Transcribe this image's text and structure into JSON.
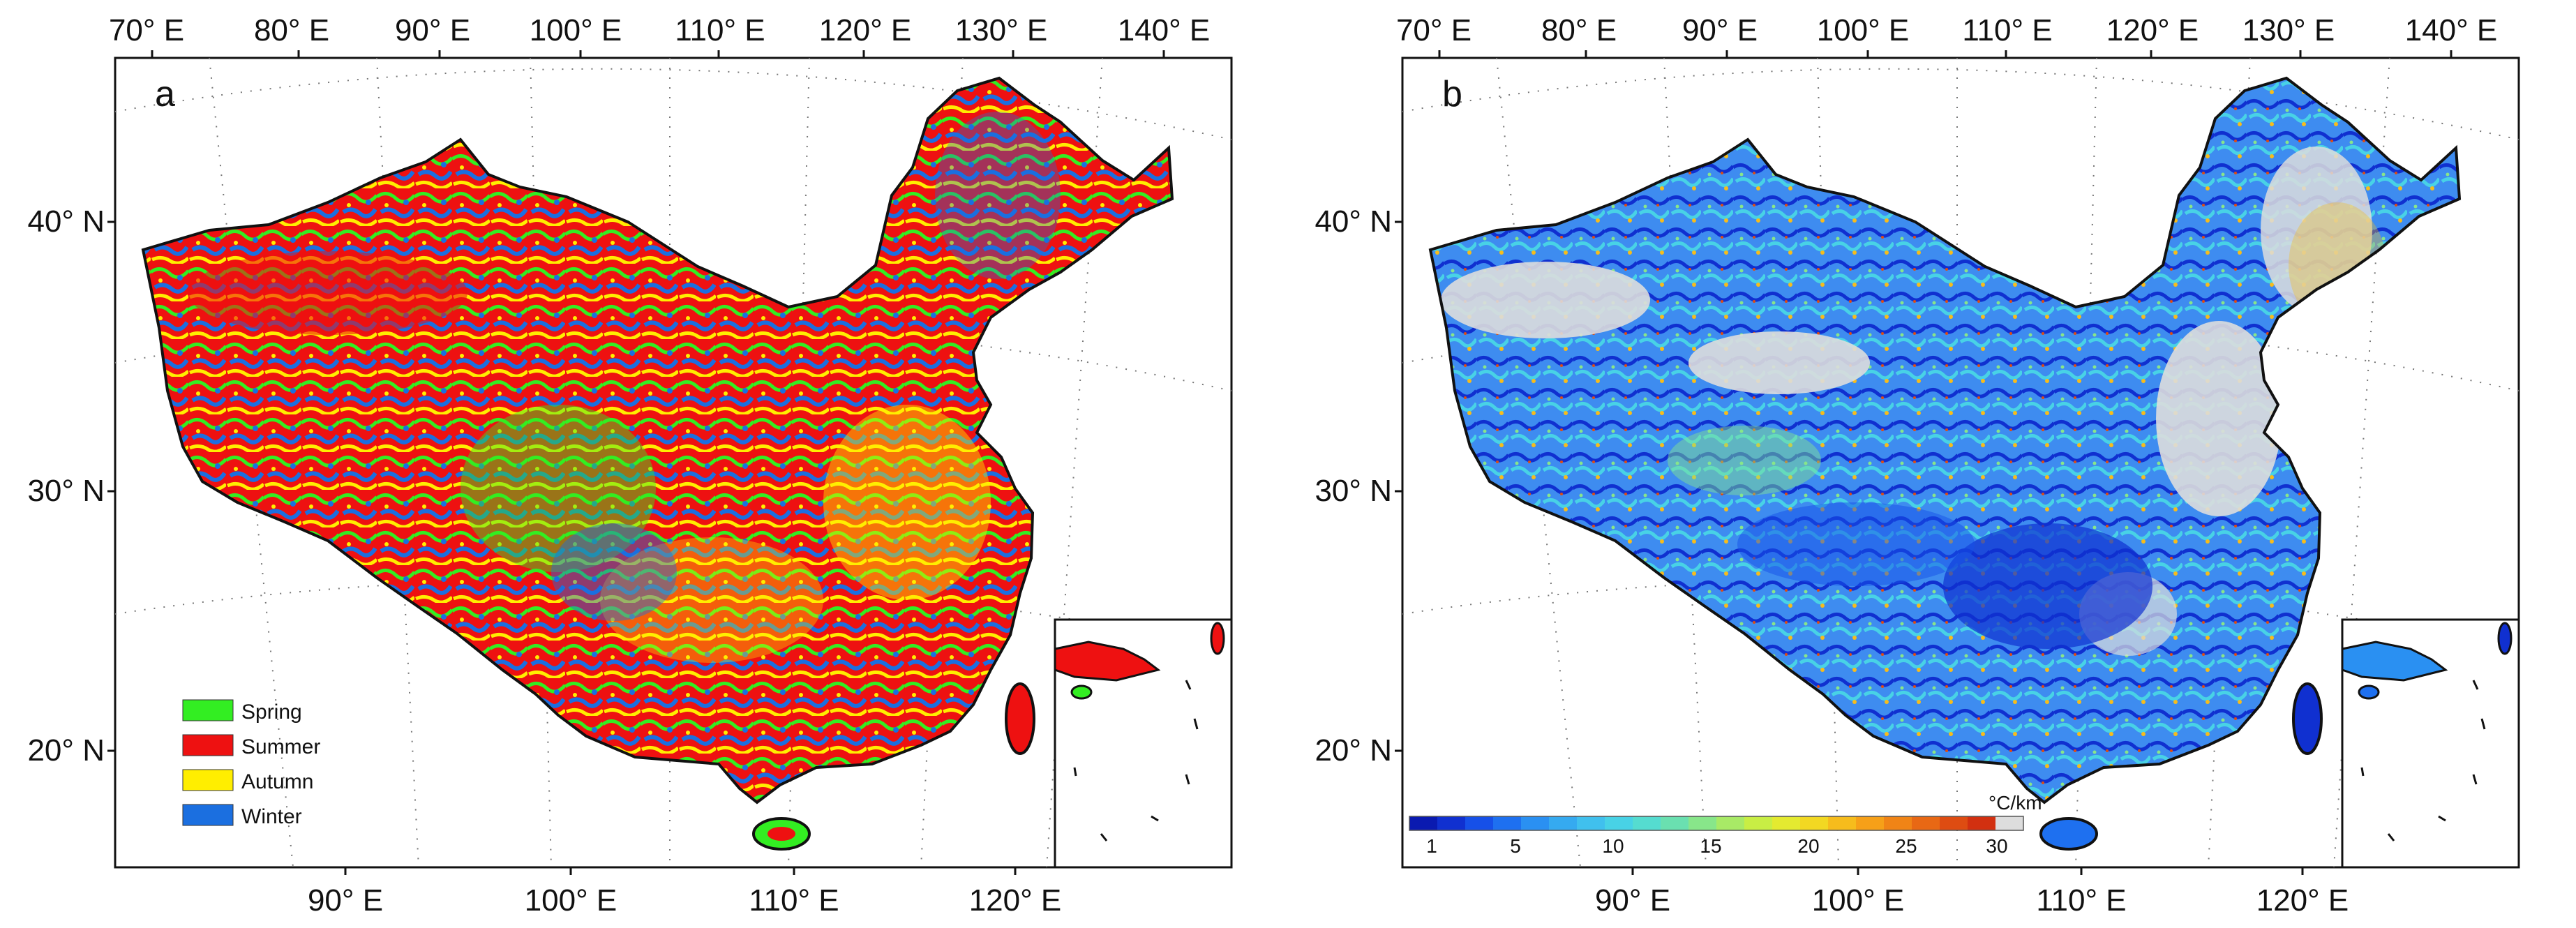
{
  "figure": {
    "panels": [
      {
        "letter": "a",
        "top_lon_labels": [
          "70° E",
          "80° E",
          "90° E",
          "100° E",
          "110° E",
          "120° E",
          "130° E",
          "140° E"
        ],
        "bottom_lon_labels": [
          "90° E",
          "100° E",
          "110° E",
          "120° E"
        ],
        "lat_labels": [
          "40° N",
          "30° N",
          "20° N"
        ],
        "legend": {
          "title": "",
          "items": [
            {
              "label": "Spring",
              "color": "#33ee22"
            },
            {
              "label": "Summer",
              "color": "#ee1111"
            },
            {
              "label": "Autumn",
              "color": "#ffee00"
            },
            {
              "label": "Winter",
              "color": "#1b6fe0"
            }
          ]
        }
      },
      {
        "letter": "b",
        "top_lon_labels": [
          "70° E",
          "80° E",
          "90° E",
          "100° E",
          "110° E",
          "120° E",
          "130° E",
          "140° E"
        ],
        "bottom_lon_labels": [
          "90° E",
          "100° E",
          "110° E",
          "120° E"
        ],
        "lat_labels": [
          "40° N",
          "30° N",
          "20° N"
        ],
        "colorbar": {
          "unit": "°C/km",
          "tick_labels": [
            "1",
            "5",
            "10",
            "15",
            "20",
            "25",
            "30"
          ],
          "colors": [
            "#0a1ab0",
            "#1030d0",
            "#1650e8",
            "#1e70f0",
            "#2a90f2",
            "#35aaf0",
            "#40c0ee",
            "#48d2e6",
            "#55dcd0",
            "#6ae0b0",
            "#88e68a",
            "#a8ea66",
            "#c8ee44",
            "#e4ea30",
            "#f2d822",
            "#f6bc1c",
            "#f6a018",
            "#f08416",
            "#e86814",
            "#de4c12",
            "#d23010",
            "#dddddd"
          ]
        },
        "no_data_color": "#dddddd"
      }
    ]
  }
}
